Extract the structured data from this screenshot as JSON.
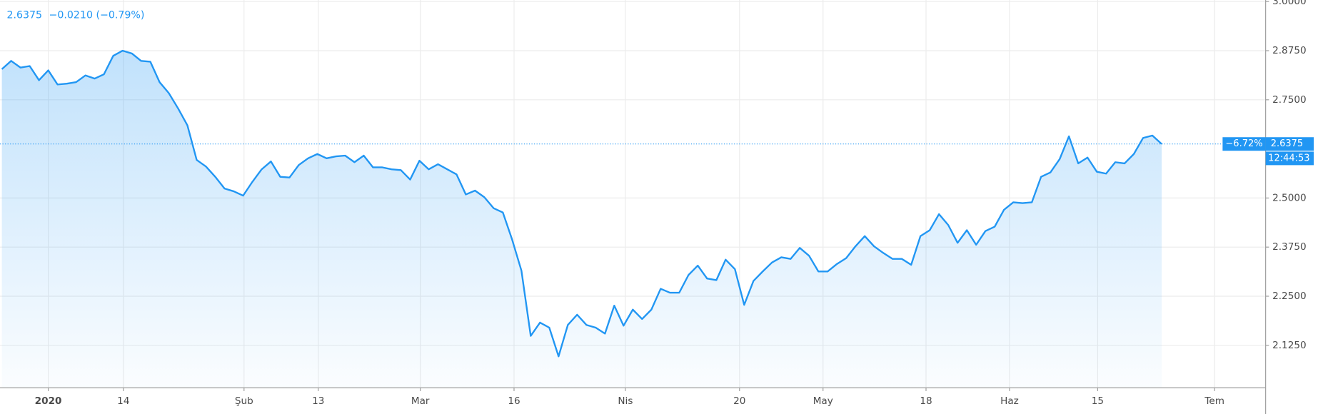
{
  "chart_data": {
    "type": "area",
    "header": {
      "price": "2.6375",
      "change": "−0.0210 (−0.79%)"
    },
    "color": "#2196f3",
    "values": [
      2.828,
      2.849,
      2.832,
      2.836,
      2.8,
      2.825,
      2.789,
      2.791,
      2.795,
      2.812,
      2.804,
      2.815,
      2.862,
      2.875,
      2.868,
      2.849,
      2.847,
      2.795,
      2.767,
      2.728,
      2.685,
      2.597,
      2.58,
      2.554,
      2.524,
      2.517,
      2.506,
      2.541,
      2.573,
      2.593,
      2.554,
      2.552,
      2.584,
      2.601,
      2.612,
      2.601,
      2.606,
      2.608,
      2.591,
      2.608,
      2.578,
      2.578,
      2.573,
      2.571,
      2.547,
      2.595,
      2.573,
      2.586,
      2.573,
      2.56,
      2.509,
      2.519,
      2.502,
      2.474,
      2.463,
      2.394,
      2.315,
      2.149,
      2.183,
      2.17,
      2.097,
      2.177,
      2.203,
      2.177,
      2.17,
      2.155,
      2.226,
      2.175,
      2.216,
      2.192,
      2.216,
      2.269,
      2.259,
      2.259,
      2.304,
      2.328,
      2.295,
      2.291,
      2.343,
      2.319,
      2.228,
      2.289,
      2.313,
      2.336,
      2.349,
      2.345,
      2.373,
      2.353,
      2.313,
      2.313,
      2.332,
      2.347,
      2.377,
      2.403,
      2.377,
      2.36,
      2.345,
      2.345,
      2.33,
      2.403,
      2.418,
      2.459,
      2.431,
      2.386,
      2.418,
      2.381,
      2.416,
      2.427,
      2.47,
      2.489,
      2.487,
      2.489,
      2.554,
      2.565,
      2.599,
      2.657,
      2.588,
      2.603,
      2.567,
      2.562,
      2.591,
      2.588,
      2.612,
      2.653,
      2.659,
      2.6375
    ],
    "xlim": [
      -0.2,
      136.2
    ],
    "xticks": [
      {
        "value": 5,
        "label": "2020"
      },
      {
        "value": 13.1,
        "label": "14"
      },
      {
        "value": 26.1,
        "label": "Şub"
      },
      {
        "value": 34.1,
        "label": "13"
      },
      {
        "value": 45.1,
        "label": "Mar"
      },
      {
        "value": 55.2,
        "label": "16"
      },
      {
        "value": 67.2,
        "label": "Nis"
      },
      {
        "value": 79.5,
        "label": "20"
      },
      {
        "value": 88.5,
        "label": "May"
      },
      {
        "value": 99.6,
        "label": "18"
      },
      {
        "value": 108.6,
        "label": "Haz"
      },
      {
        "value": 118.1,
        "label": "15"
      },
      {
        "value": 130.7,
        "label": "Tem"
      }
    ],
    "ylim": [
      2.017,
      3.004
    ],
    "yticks": [
      {
        "value": 2.125,
        "label": "2.1250"
      },
      {
        "value": 2.25,
        "label": "2.2500"
      },
      {
        "value": 2.375,
        "label": "2.3750"
      },
      {
        "value": 2.5,
        "label": "2.5000"
      },
      {
        "value": 2.75,
        "label": "2.7500"
      },
      {
        "value": 2.875,
        "label": "2.8750"
      },
      {
        "value": 3,
        "label": "3.0000"
      }
    ],
    "grid": true,
    "price_line": {
      "value": 2.6375,
      "change_label": "−6.72%",
      "countdown": "12:44:53"
    }
  }
}
